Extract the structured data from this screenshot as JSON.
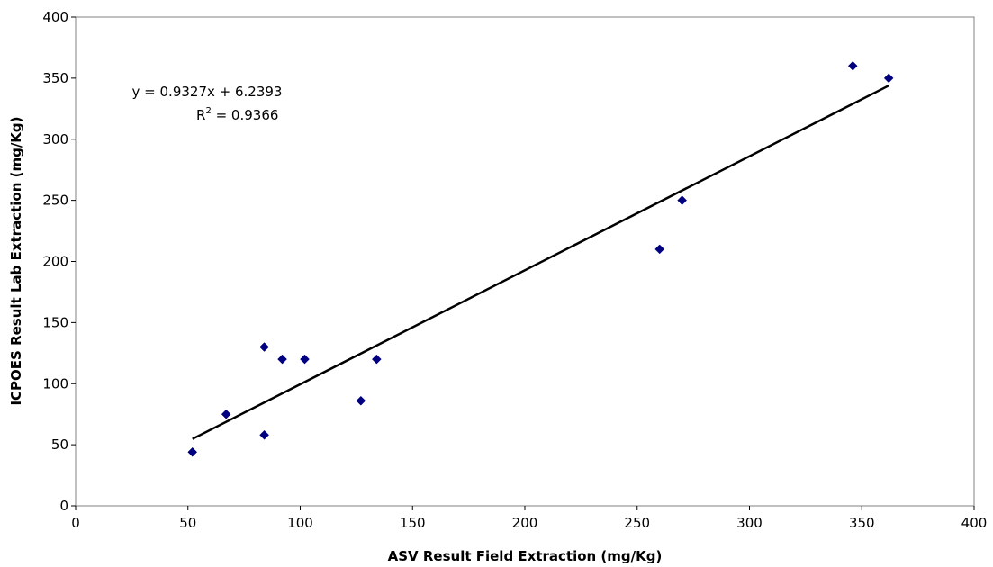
{
  "chart_data": {
    "type": "scatter",
    "title": "",
    "xlabel": "ASV Result Field Extraction (mg/Kg)",
    "ylabel": "ICPOES Result Lab Extraction (mg/Kg)",
    "xlim": [
      0,
      400
    ],
    "ylim": [
      0,
      400
    ],
    "xticks": [
      0,
      50,
      100,
      150,
      200,
      250,
      300,
      350,
      400
    ],
    "yticks": [
      0,
      50,
      100,
      150,
      200,
      250,
      300,
      350,
      400
    ],
    "grid": false,
    "legend": false,
    "series": [
      {
        "marker": "diamond",
        "color": "#000080",
        "points": [
          {
            "x": 52,
            "y": 44
          },
          {
            "x": 67,
            "y": 75
          },
          {
            "x": 84,
            "y": 130
          },
          {
            "x": 84,
            "y": 58
          },
          {
            "x": 92,
            "y": 120
          },
          {
            "x": 102,
            "y": 120
          },
          {
            "x": 127,
            "y": 86
          },
          {
            "x": 134,
            "y": 120
          },
          {
            "x": 260,
            "y": 210
          },
          {
            "x": 270,
            "y": 250
          },
          {
            "x": 346,
            "y": 360
          },
          {
            "x": 362,
            "y": 350
          }
        ]
      }
    ],
    "trendline": {
      "slope": 0.9327,
      "intercept": 6.2393,
      "x_range": [
        52,
        362
      ],
      "color": "#000000"
    },
    "annotations": {
      "equation": "y = 0.9327x + 6.2393",
      "r2_prefix": "R",
      "r2_sup": "2",
      "r2_value": " = 0.9366"
    }
  }
}
